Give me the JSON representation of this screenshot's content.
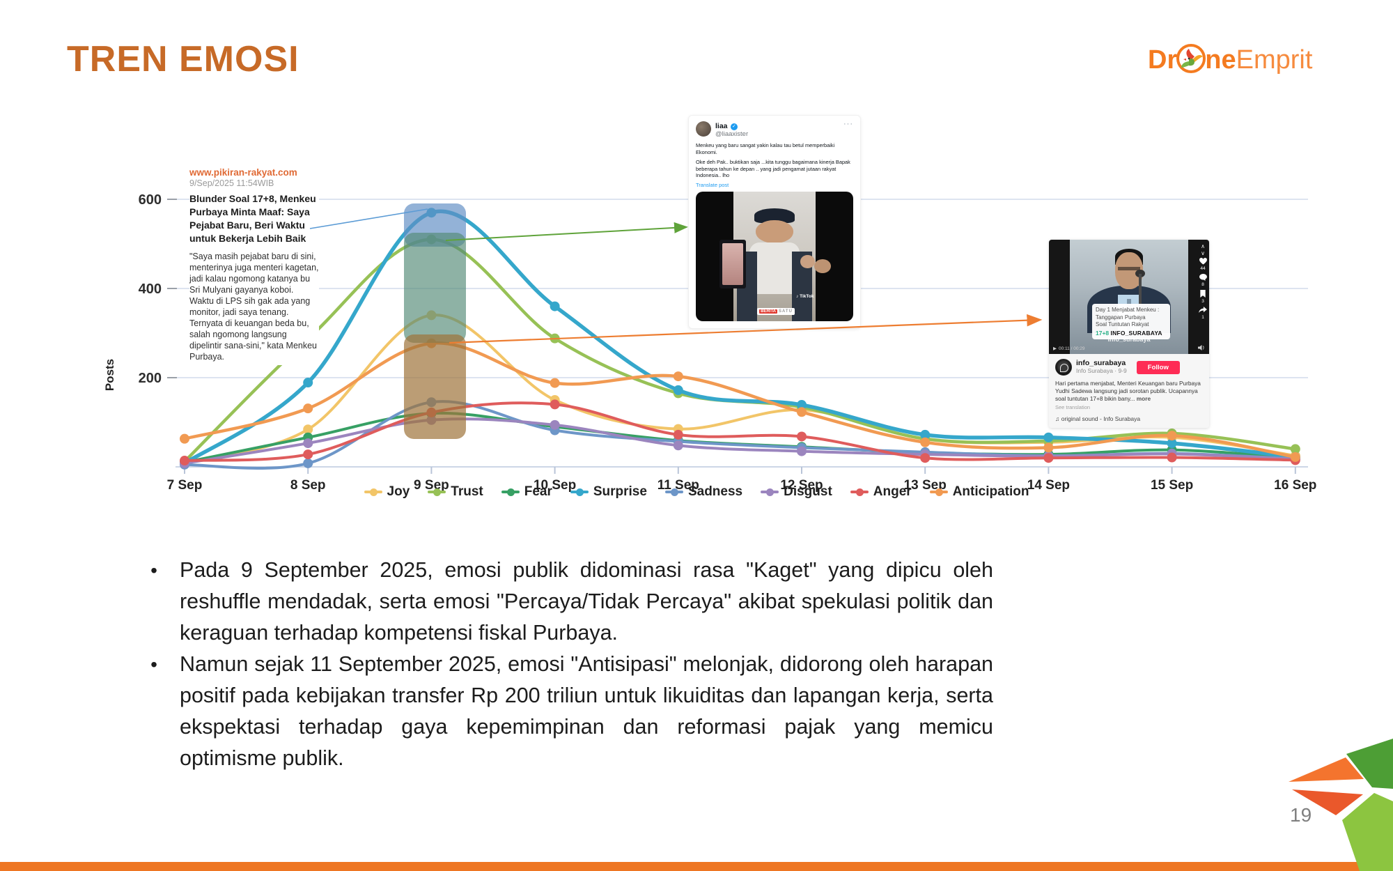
{
  "slide": {
    "title": "TREN EMOSI",
    "page_number": "19",
    "accent_color": "#C76A27",
    "bottom_bar_color": "#EE7623"
  },
  "logo": {
    "prefix": "Dr",
    "mid": "ne",
    "suffix": "Emprit"
  },
  "chart_data": {
    "type": "line",
    "title": "",
    "xlabel": "",
    "ylabel": "Posts",
    "categories": [
      "7 Sep",
      "8 Sep",
      "9 Sep",
      "10 Sep",
      "11 Sep",
      "12 Sep",
      "13 Sep",
      "14 Sep",
      "15 Sep",
      "16 Sep"
    ],
    "yticks": [
      200,
      400,
      600
    ],
    "ylim": [
      0,
      620
    ],
    "grid": true,
    "legend_position": "bottom",
    "series": [
      {
        "name": "Joy",
        "color": "#F2C568",
        "width": 4,
        "values": [
          10,
          84,
          340,
          150,
          85,
          128,
          62,
          55,
          66,
          25
        ]
      },
      {
        "name": "Trust",
        "color": "#97C156",
        "width": 4.5,
        "values": [
          12,
          287,
          510,
          288,
          165,
          134,
          63,
          58,
          75,
          40
        ]
      },
      {
        "name": "Fear",
        "color": "#37A064",
        "width": 4,
        "values": [
          10,
          66,
          120,
          90,
          59,
          45,
          32,
          28,
          38,
          20
        ]
      },
      {
        "name": "Surprise",
        "color": "#35A7CB",
        "width": 5.5,
        "values": [
          8,
          189,
          570,
          360,
          172,
          139,
          72,
          66,
          53,
          22
        ]
      },
      {
        "name": "Sadness",
        "color": "#6D96C8",
        "width": 4,
        "values": [
          5,
          8,
          145,
          82,
          57,
          43,
          33,
          25,
          30,
          18
        ]
      },
      {
        "name": "Disgust",
        "color": "#9B85BE",
        "width": 4,
        "values": [
          8,
          53,
          105,
          94,
          48,
          35,
          28,
          24,
          29,
          17
        ]
      },
      {
        "name": "Anger",
        "color": "#DF5C5C",
        "width": 4,
        "values": [
          14,
          28,
          122,
          140,
          72,
          68,
          20,
          20,
          21,
          15
        ]
      },
      {
        "name": "Anticipation",
        "color": "#F19A52",
        "width": 4.5,
        "values": [
          63,
          131,
          277,
          188,
          203,
          123,
          55,
          43,
          70,
          22
        ]
      }
    ]
  },
  "news_annotation": {
    "source": "www.pikiran-rakyat.com",
    "datetime": "9/Sep/2025 11:54WIB",
    "headline": "Blunder Soal 17+8, Menkeu Purbaya Minta Maaf: Saya Pejabat Baru, Beri Waktu untuk Bekerja Lebih Baik",
    "quote": "\"Saya masih pejabat baru di sini, menterinya juga menteri kagetan, jadi kalau ngomong katanya bu Sri Mulyani gayanya koboi. Waktu di LPS sih gak ada yang monitor, jadi saya tenang. Ternyata di keuangan beda bu, salah ngomong langsung dipelintir sana-sini,\" kata Menkeu Purbaya."
  },
  "tweet": {
    "name": "liaa",
    "verified_badge": "✓",
    "handle": "@liaaxister",
    "menu": "···",
    "body1": "Menkeu yang baru sangat yakin kalau tau betul memperbaiki Ekonomi.",
    "body2": "Oke deh Pak..  buktikan saja ...kita tunggu bagaimana kinerja Bapak beberapa tahun ke depan .. yang jadi pengamat jutaan rakyat Indonesia.. lho",
    "translate": "Translate post",
    "video_brand_1": "BERITA",
    "video_brand_2": "SATU",
    "tiktok_mark": "♪ TikTok"
  },
  "tiktok": {
    "caption_line1": "Day 1 Menjabat Menkeu :",
    "caption_line2": "Tanggapan Purbaya",
    "caption_line3": "Soal Tuntutan Rakyat",
    "tag_17": "17+8",
    "tag_handle": "INFO_SURABAYA",
    "watermark": "info_surabaya",
    "play_icon": "▶",
    "time": "00:11 / 00:29",
    "chevron_up": "∧",
    "chevron_down": "∨",
    "counts": {
      "likes": "44",
      "comments": "8",
      "bookmarks": "3",
      "shares": "1"
    },
    "username": "info_surabaya",
    "subtitle": "Info Surabaya · 9-9",
    "follow": "Follow",
    "caption": "Hari pertama menjabat, Menteri Keuangan baru Purbaya Yudhi Sadewa langsung jadi sorotan publik. Ucapannya soal tuntutan 17+8 bikin bany...",
    "more": "more",
    "see_translation": "See translation",
    "sound": "♫ original sound - Info Surabaya"
  },
  "bullets": [
    "Pada 9 September 2025, emosi publik didominasi rasa \"Kaget\" yang dipicu oleh reshuffle mendadak, serta emosi \"Percaya/Tidak Percaya\" akibat spekulasi politik dan keraguan terhadap kompetensi fiskal Purbaya.",
    "Namun sejak 11 September 2025, emosi \"Antisipasi\" melonjak, didorong oleh harapan positif pada kebijakan transfer Rp 200 triliun untuk likuiditas dan lapangan kerja, serta ekspektasi terhadap gaya kepemimpinan dan reformasi pajak yang memicu optimisme publik."
  ]
}
